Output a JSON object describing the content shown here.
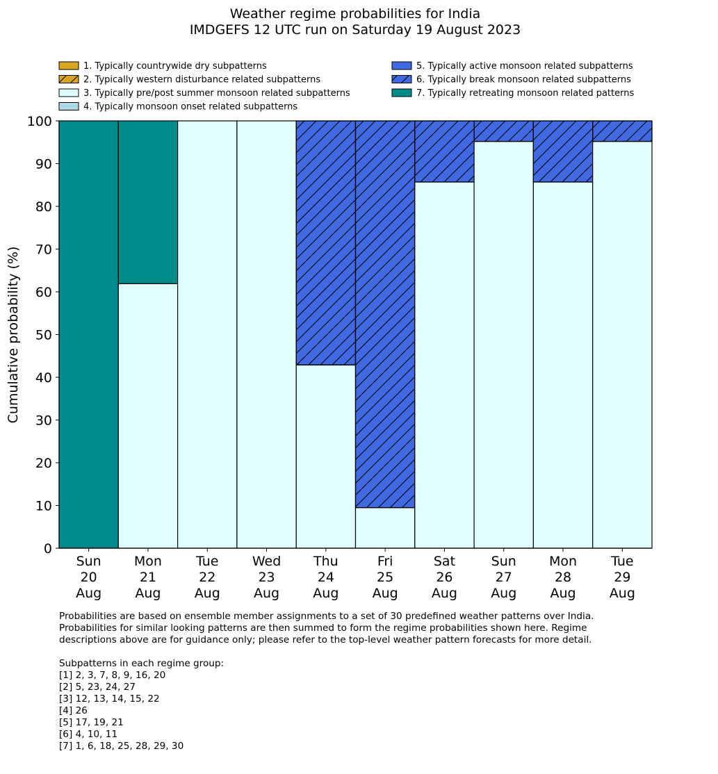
{
  "chart_data": {
    "type": "bar",
    "stacked": true,
    "title": "Weather regime probabilities for India",
    "subtitle": "IMDGEFS 12 UTC run on Saturday 19 August 2023",
    "xlabel": "",
    "ylabel": "Cumulative probability (%)",
    "ylim": [
      0,
      100
    ],
    "yticks": [
      0,
      10,
      20,
      30,
      40,
      50,
      60,
      70,
      80,
      90,
      100
    ],
    "categories": [
      [
        "Sun",
        "20",
        "Aug"
      ],
      [
        "Mon",
        "21",
        "Aug"
      ],
      [
        "Tue",
        "22",
        "Aug"
      ],
      [
        "Wed",
        "23",
        "Aug"
      ],
      [
        "Thu",
        "24",
        "Aug"
      ],
      [
        "Fri",
        "25",
        "Aug"
      ],
      [
        "Sat",
        "26",
        "Aug"
      ],
      [
        "Sun",
        "27",
        "Aug"
      ],
      [
        "Mon",
        "28",
        "Aug"
      ],
      [
        "Tue",
        "29",
        "Aug"
      ]
    ],
    "legend_placement": "top",
    "series": [
      {
        "name": "1. Typically countrywide dry subpatterns",
        "color": "#DAA520",
        "hatch": false,
        "values": [
          0,
          0,
          0,
          0,
          0,
          0,
          0,
          0,
          0,
          0
        ]
      },
      {
        "name": "2. Typically western disturbance related subpatterns",
        "color": "#DAA520",
        "hatch": true,
        "values": [
          0,
          0,
          0,
          0,
          0,
          0,
          0,
          0,
          0,
          0
        ]
      },
      {
        "name": "3. Typically pre/post summer monsoon related subpatterns",
        "color": "#E0FFFF",
        "hatch": false,
        "values": [
          0,
          61.9,
          100,
          100,
          42.9,
          9.5,
          85.7,
          95.2,
          85.7,
          95.2
        ]
      },
      {
        "name": "4. Typically monsoon onset related subpatterns",
        "color": "#ADD8E6",
        "hatch": false,
        "values": [
          0,
          0,
          0,
          0,
          0,
          0,
          0,
          0,
          0,
          0
        ]
      },
      {
        "name": "5. Typically active monsoon related subpatterns",
        "color": "#4169E1",
        "hatch": false,
        "values": [
          0,
          0,
          0,
          0,
          0,
          0,
          0,
          0,
          0,
          0
        ]
      },
      {
        "name": "6. Typically break monsoon related subpatterns",
        "color": "#4169E1",
        "hatch": true,
        "values": [
          0,
          0,
          0,
          0,
          57.1,
          90.5,
          14.3,
          4.8,
          14.3,
          4.8
        ]
      },
      {
        "name": "7. Typically retreating monsoon related patterns",
        "color": "#008B8B",
        "hatch": false,
        "values": [
          100,
          38.1,
          0,
          0,
          0,
          0,
          0,
          0,
          0,
          0
        ]
      }
    ]
  },
  "notes": {
    "paragraph": "Probabilities are based on ensemble member assignments to a set of 30 predefined weather patterns over India.\nProbabilities for similar looking patterns are then summed to form the regime probabilities shown here. Regime\ndescriptions above are for guidance only; please refer to the top-level weather pattern forecasts for more detail.",
    "groups_heading": "Subpatterns in each regime group:",
    "groups": [
      "[1] 2, 3, 7, 8, 9, 16, 20",
      "[2] 5, 23, 24, 27",
      "[3] 12, 13, 14, 15, 22",
      "[4] 26",
      "[5] 17, 19, 21",
      "[6] 4, 10, 11",
      "[7] 1, 6, 18, 25, 28, 29, 30"
    ]
  }
}
